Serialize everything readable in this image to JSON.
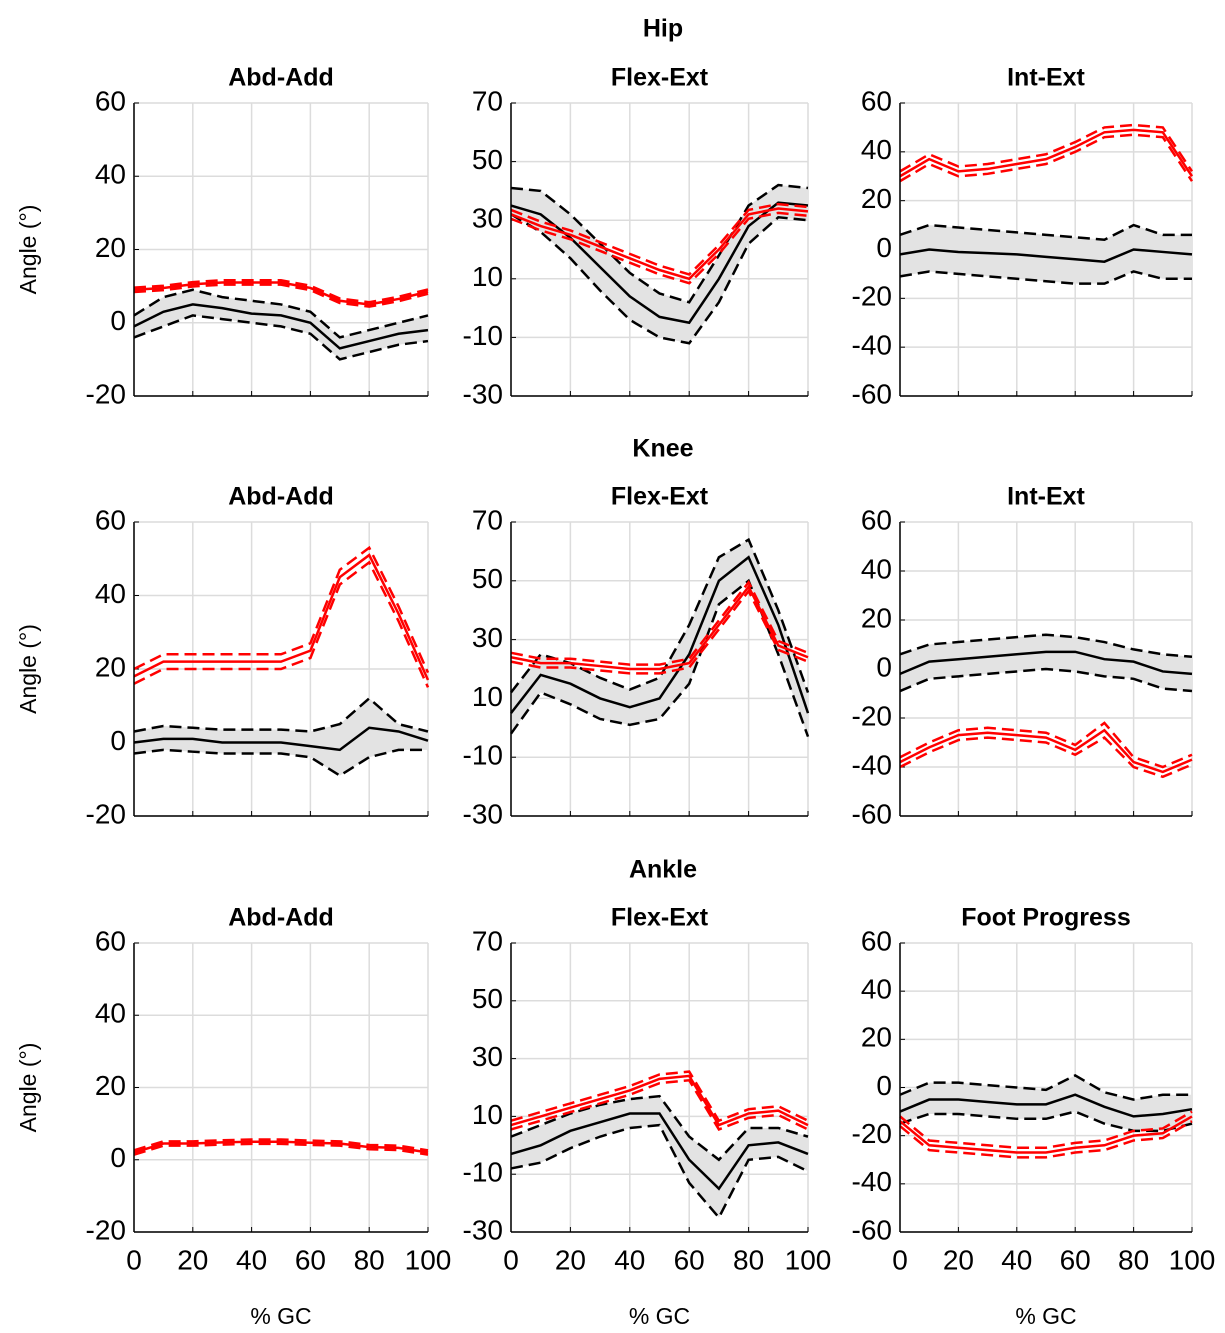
{
  "sections": [
    "Hip",
    "Knee",
    "Ankle"
  ],
  "chart_data": [
    {
      "type": "line",
      "title": "Abd-Add",
      "ylabel": "Angle (°)",
      "x": [
        0,
        10,
        20,
        30,
        40,
        50,
        60,
        70,
        80,
        90,
        100
      ],
      "xlim": [
        0,
        100
      ],
      "xticks": [
        0,
        20,
        40,
        60,
        80,
        100
      ],
      "ylim": [
        -20,
        60
      ],
      "yticks": [
        -20,
        0,
        20,
        40,
        60
      ],
      "grid": true,
      "series": [
        {
          "color": "#000000",
          "band": "#e3e3e3",
          "values": [
            -1,
            3,
            5,
            4,
            2.5,
            2,
            0,
            -7,
            -5,
            -3,
            -2
          ],
          "upper": [
            2,
            7,
            9,
            7,
            6,
            5,
            3,
            -4,
            -2,
            0,
            2
          ],
          "lower": [
            -4,
            -1,
            2,
            1,
            0,
            -1,
            -3,
            -10,
            -8,
            -6,
            -5
          ]
        },
        {
          "color": "#ff0000",
          "values": [
            9,
            9.5,
            10.5,
            11,
            11,
            11,
            9.5,
            6,
            5,
            6.5,
            8.5
          ],
          "upper": [
            9.6,
            10.1,
            11.1,
            11.6,
            11.6,
            11.6,
            10.1,
            6.6,
            5.6,
            7.1,
            9.1
          ],
          "lower": [
            8.4,
            8.9,
            9.9,
            10.4,
            10.4,
            10.4,
            8.9,
            5.4,
            4.4,
            5.9,
            7.9
          ]
        }
      ]
    },
    {
      "type": "line",
      "title": "Flex-Ext",
      "x": [
        0,
        10,
        20,
        30,
        40,
        50,
        60,
        70,
        80,
        90,
        100
      ],
      "xlim": [
        0,
        100
      ],
      "xticks": [
        0,
        20,
        40,
        60,
        80,
        100
      ],
      "ylim": [
        -30,
        70
      ],
      "yticks": [
        -30,
        -10,
        10,
        30,
        50,
        70
      ],
      "grid": true,
      "series": [
        {
          "color": "#000000",
          "band": "#e3e3e3",
          "values": [
            35,
            32,
            24,
            14,
            4,
            -3,
            -5,
            10,
            28,
            36,
            35
          ],
          "upper": [
            41,
            40,
            32,
            22,
            12,
            5,
            2,
            18,
            35,
            42,
            41
          ],
          "lower": [
            32,
            26,
            17,
            6,
            -4,
            -10,
            -12,
            2,
            22,
            31,
            30
          ]
        },
        {
          "color": "#ff0000",
          "values": [
            32,
            28,
            25,
            21,
            17,
            13,
            10,
            20,
            32,
            34,
            33
          ],
          "upper": [
            33.5,
            29.5,
            26.5,
            22.5,
            18.5,
            14.5,
            11.5,
            21.5,
            33.5,
            35.5,
            34.5
          ],
          "lower": [
            30.5,
            26.5,
            23.5,
            19.5,
            15.5,
            11.5,
            8.5,
            18.5,
            30.5,
            32.5,
            31.5
          ]
        }
      ]
    },
    {
      "type": "line",
      "title": "Int-Ext",
      "x": [
        0,
        10,
        20,
        30,
        40,
        50,
        60,
        70,
        80,
        90,
        100
      ],
      "xlim": [
        0,
        100
      ],
      "xticks": [
        0,
        20,
        40,
        60,
        80,
        100
      ],
      "ylim": [
        -60,
        60
      ],
      "yticks": [
        -60,
        -40,
        -20,
        0,
        20,
        40,
        60
      ],
      "grid": true,
      "series": [
        {
          "color": "#000000",
          "band": "#e3e3e3",
          "values": [
            -2,
            0,
            -1,
            -1.5,
            -2,
            -3,
            -4,
            -5,
            0,
            -1,
            -2
          ],
          "upper": [
            6,
            10,
            9,
            8,
            7,
            6,
            5,
            4,
            10,
            6,
            6
          ],
          "lower": [
            -11,
            -9,
            -10,
            -11,
            -12,
            -13,
            -14,
            -14,
            -9,
            -12,
            -12
          ]
        },
        {
          "color": "#ff0000",
          "values": [
            30,
            37,
            32,
            33,
            35,
            37,
            42,
            48,
            49,
            48,
            30
          ],
          "upper": [
            32,
            39,
            34,
            35,
            37,
            39,
            44,
            50,
            51,
            50,
            32
          ],
          "lower": [
            28,
            35,
            30,
            31,
            33,
            35,
            40,
            46,
            47,
            46,
            28
          ]
        }
      ]
    },
    {
      "type": "line",
      "title": "Abd-Add",
      "ylabel": "Angle (°)",
      "x": [
        0,
        10,
        20,
        30,
        40,
        50,
        60,
        70,
        80,
        90,
        100
      ],
      "xlim": [
        0,
        100
      ],
      "xticks": [
        0,
        20,
        40,
        60,
        80,
        100
      ],
      "ylim": [
        -20,
        60
      ],
      "yticks": [
        -20,
        0,
        20,
        40,
        60
      ],
      "grid": true,
      "series": [
        {
          "color": "#000000",
          "band": "#e3e3e3",
          "values": [
            0,
            1,
            1,
            0,
            0,
            0,
            -1,
            -2,
            4,
            3,
            0.5
          ],
          "upper": [
            3,
            4.5,
            4,
            3.5,
            3.5,
            3.5,
            3,
            5,
            12,
            5,
            3
          ],
          "lower": [
            -3,
            -2,
            -2.5,
            -3,
            -3,
            -3,
            -4,
            -9,
            -4,
            -2,
            -2
          ]
        },
        {
          "color": "#ff0000",
          "values": [
            18,
            22,
            22,
            22,
            22,
            22,
            25,
            45,
            51,
            35,
            17
          ],
          "upper": [
            20,
            24,
            24,
            24,
            24,
            24,
            27,
            47,
            53,
            37,
            19
          ],
          "lower": [
            16,
            20,
            20,
            20,
            20,
            20,
            23,
            43,
            49,
            33,
            15
          ]
        }
      ]
    },
    {
      "type": "line",
      "title": "Flex-Ext",
      "x": [
        0,
        10,
        20,
        30,
        40,
        50,
        60,
        70,
        80,
        90,
        100
      ],
      "xlim": [
        0,
        100
      ],
      "xticks": [
        0,
        20,
        40,
        60,
        80,
        100
      ],
      "ylim": [
        -30,
        70
      ],
      "yticks": [
        -30,
        -10,
        10,
        30,
        50,
        70
      ],
      "grid": true,
      "series": [
        {
          "color": "#000000",
          "band": "#e3e3e3",
          "values": [
            5,
            18,
            15,
            10,
            7,
            10,
            25,
            50,
            58,
            35,
            5
          ],
          "upper": [
            12,
            25,
            22,
            17,
            13,
            17,
            35,
            58,
            64,
            40,
            12
          ],
          "lower": [
            -2,
            12,
            8,
            3,
            1,
            3,
            15,
            42,
            50,
            25,
            -3
          ]
        },
        {
          "color": "#ff0000",
          "values": [
            24,
            22,
            22,
            21,
            20,
            20,
            22,
            35,
            48,
            28,
            24
          ],
          "upper": [
            25.5,
            23.5,
            23.5,
            22.5,
            21.5,
            21.5,
            23.5,
            36.5,
            49.5,
            29.5,
            25.5
          ],
          "lower": [
            22.5,
            20.5,
            20.5,
            19.5,
            18.5,
            18.5,
            20.5,
            33.5,
            46.5,
            26.5,
            22.5
          ]
        }
      ]
    },
    {
      "type": "line",
      "title": "Int-Ext",
      "x": [
        0,
        10,
        20,
        30,
        40,
        50,
        60,
        70,
        80,
        90,
        100
      ],
      "xlim": [
        0,
        100
      ],
      "xticks": [
        0,
        20,
        40,
        60,
        80,
        100
      ],
      "ylim": [
        -60,
        60
      ],
      "yticks": [
        -60,
        -40,
        -20,
        0,
        20,
        40,
        60
      ],
      "grid": true,
      "series": [
        {
          "color": "#000000",
          "band": "#e3e3e3",
          "values": [
            -2,
            3,
            4,
            5,
            6,
            7,
            7,
            4,
            3,
            -1,
            -2
          ],
          "upper": [
            6,
            10,
            11,
            12,
            13,
            14,
            13,
            11,
            8,
            6,
            5
          ],
          "lower": [
            -9,
            -4,
            -3,
            -2,
            -1,
            0,
            -1,
            -3,
            -4,
            -8,
            -9
          ]
        },
        {
          "color": "#ff0000",
          "values": [
            -38,
            -32,
            -27,
            -26,
            -27,
            -28,
            -33,
            -25,
            -38,
            -42,
            -37
          ],
          "upper": [
            -36,
            -30,
            -25,
            -24,
            -25,
            -26,
            -31,
            -22,
            -36,
            -40,
            -35
          ],
          "lower": [
            -40,
            -34,
            -29,
            -28,
            -29,
            -30,
            -35,
            -28,
            -40,
            -44,
            -39
          ]
        }
      ]
    },
    {
      "type": "line",
      "title": "Abd-Add",
      "ylabel": "Angle (°)",
      "xlabel": "% GC",
      "xtick_labels": true,
      "x": [
        0,
        10,
        20,
        30,
        40,
        50,
        60,
        70,
        80,
        90,
        100
      ],
      "xlim": [
        0,
        100
      ],
      "xticks": [
        0,
        20,
        40,
        60,
        80,
        100
      ],
      "ylim": [
        -20,
        60
      ],
      "yticks": [
        -20,
        0,
        20,
        40,
        60
      ],
      "grid": true,
      "series": [
        {
          "color": "#ff0000",
          "values": [
            2,
            4.5,
            4.5,
            4.8,
            5,
            5,
            4.7,
            4.5,
            3.5,
            3.3,
            2
          ],
          "upper": [
            2.6,
            5.1,
            5.1,
            5.4,
            5.6,
            5.6,
            5.3,
            5.1,
            4.1,
            3.9,
            2.6
          ],
          "lower": [
            1.4,
            3.9,
            3.9,
            4.2,
            4.4,
            4.4,
            4.1,
            3.9,
            2.9,
            2.7,
            1.4
          ]
        }
      ]
    },
    {
      "type": "line",
      "title": "Flex-Ext",
      "xlabel": "% GC",
      "xtick_labels": true,
      "x": [
        0,
        10,
        20,
        30,
        40,
        50,
        60,
        70,
        80,
        90,
        100
      ],
      "xlim": [
        0,
        100
      ],
      "xticks": [
        0,
        20,
        40,
        60,
        80,
        100
      ],
      "ylim": [
        -30,
        70
      ],
      "yticks": [
        -30,
        -10,
        10,
        30,
        50,
        70
      ],
      "grid": true,
      "series": [
        {
          "color": "#000000",
          "band": "#e3e3e3",
          "values": [
            -3,
            0,
            5,
            8,
            11,
            11,
            -5,
            -15,
            0,
            1,
            -3
          ],
          "upper": [
            3,
            7,
            11,
            14,
            16,
            17,
            3,
            -5,
            6,
            6,
            3
          ],
          "lower": [
            -8,
            -6,
            -1,
            3,
            6,
            7,
            -13,
            -25,
            -5,
            -4,
            -9
          ]
        },
        {
          "color": "#ff0000",
          "values": [
            7,
            10,
            13,
            16,
            19,
            23,
            24,
            7,
            11,
            12,
            7
          ],
          "upper": [
            8.5,
            11.5,
            14.5,
            17.5,
            20.5,
            24.5,
            25.5,
            8.5,
            12.5,
            13.5,
            8.5
          ],
          "lower": [
            5.5,
            8.5,
            11.5,
            14.5,
            17.5,
            21.5,
            22.5,
            5.5,
            9.5,
            10.5,
            5.5
          ]
        }
      ]
    },
    {
      "type": "line",
      "title": "Foot Progress",
      "xlabel": "% GC",
      "xtick_labels": true,
      "x": [
        0,
        10,
        20,
        30,
        40,
        50,
        60,
        70,
        80,
        90,
        100
      ],
      "xlim": [
        0,
        100
      ],
      "xticks": [
        0,
        20,
        40,
        60,
        80,
        100
      ],
      "ylim": [
        -60,
        60
      ],
      "yticks": [
        -60,
        -40,
        -20,
        0,
        20,
        40,
        60
      ],
      "grid": true,
      "series": [
        {
          "color": "#000000",
          "band": "#e3e3e3",
          "values": [
            -10,
            -5,
            -5,
            -6,
            -7,
            -7,
            -3,
            -8,
            -12,
            -11,
            -9
          ],
          "upper": [
            -3,
            2,
            2,
            1,
            0,
            -1,
            5,
            -2,
            -5,
            -3,
            -3
          ],
          "lower": [
            -15,
            -11,
            -11,
            -12,
            -13,
            -13,
            -10,
            -15,
            -18,
            -18,
            -15
          ]
        },
        {
          "color": "#ff0000",
          "values": [
            -14,
            -24,
            -25,
            -26,
            -27,
            -27,
            -25,
            -24,
            -20,
            -19,
            -12
          ],
          "upper": [
            -12,
            -22,
            -23,
            -24,
            -25,
            -25,
            -23,
            -22,
            -18,
            -17,
            -10
          ],
          "lower": [
            -16,
            -26,
            -27,
            -28,
            -29,
            -29,
            -27,
            -26,
            -22,
            -21,
            -14
          ]
        }
      ]
    }
  ]
}
